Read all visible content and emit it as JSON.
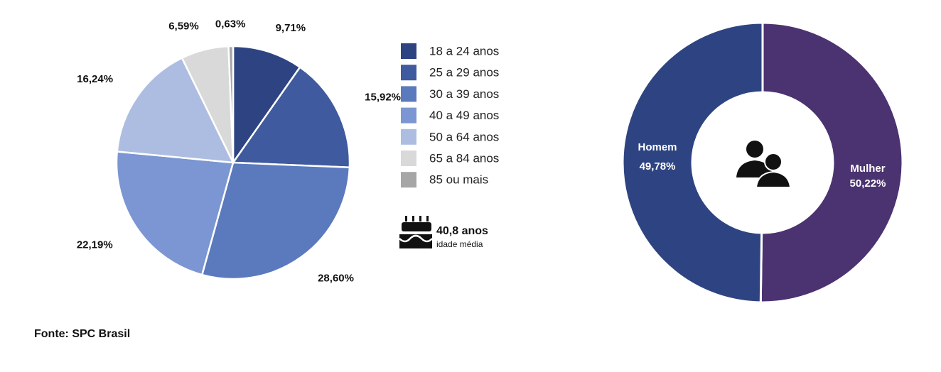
{
  "chart_data": [
    {
      "type": "pie",
      "categories": [
        "18 a 24 anos",
        "25 a 29 anos",
        "30 a 39 anos",
        "40 a 49 anos",
        "50 a 64 anos",
        "65 a 84 anos",
        "85 ou mais"
      ],
      "values": [
        9.71,
        15.92,
        28.6,
        22.19,
        16.24,
        6.59,
        0.63
      ],
      "value_labels": [
        "9,71%",
        "15,92%",
        "28,60%",
        "22,19%",
        "16,24%",
        "6,59%",
        "0,63%"
      ],
      "colors": [
        "#2e4482",
        "#3f5a9e",
        "#5b79bd",
        "#7b96d2",
        "#adbde2",
        "#d9d9d9",
        "#a6a6a6"
      ],
      "legend": "right",
      "annotations": [
        "40,8 anos",
        "idade média"
      ]
    },
    {
      "type": "donut",
      "categories": [
        "Mulher",
        "Homem"
      ],
      "values": [
        50.22,
        49.78
      ],
      "value_labels": [
        "50,22%",
        "49,78%"
      ],
      "colors": [
        "#4b3270",
        "#2e4482"
      ]
    }
  ],
  "source": "Fonte: SPC Brasil"
}
